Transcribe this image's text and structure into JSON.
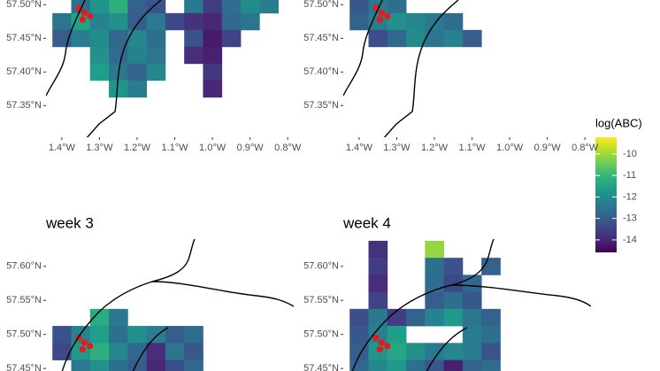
{
  "chart_data": [
    {
      "type": "heatmap",
      "xlim": [
        -1.442,
        -0.784
      ],
      "ylim": [
        57.303,
        57.507
      ],
      "xticks": [
        {
          "value": -1.4,
          "label": "1.4°W"
        },
        {
          "value": -1.3,
          "label": "1.3°W"
        },
        {
          "value": -1.2,
          "label": "1.2°W"
        },
        {
          "value": -1.1,
          "label": "1.1°W"
        },
        {
          "value": -1.0,
          "label": "1.0°W"
        },
        {
          "value": -0.9,
          "label": "0.9°W"
        },
        {
          "value": -0.8,
          "label": "0.8°W"
        }
      ],
      "yticks": [
        {
          "value": 57.35,
          "label": "57.35°N"
        },
        {
          "value": 57.4,
          "label": "57.40°N"
        },
        {
          "value": 57.45,
          "label": "57.45°N"
        },
        {
          "value": 57.5,
          "label": "57.50°N"
        }
      ],
      "cells": [
        {
          "lat": 57.5,
          "lon": [
            -1.35,
            -1.3,
            -1.25,
            -1.2,
            -1.15,
            -1.05,
            -1.0,
            -0.95,
            -0.9,
            -0.85
          ],
          "values": [
            -12.6,
            -11.8,
            -11.2,
            -12.9,
            -13.2,
            -12.4,
            -13.6,
            -12.7,
            -12.0,
            -12.3
          ]
        },
        {
          "lat": 57.475,
          "lon": [
            -1.4,
            -1.35,
            -1.3,
            -1.25,
            -1.2,
            -1.15,
            -1.1,
            -1.05,
            -1.0,
            -0.95,
            -0.9
          ],
          "values": [
            -12.5,
            -11.5,
            -12.2,
            -11.9,
            -13.0,
            -12.4,
            -13.4,
            -13.8,
            -14.0,
            -12.8,
            -12.5
          ]
        },
        {
          "lat": 57.45,
          "lon": [
            -1.4,
            -1.35,
            -1.3,
            -1.25,
            -1.2,
            -1.15,
            -1.05,
            -1.0,
            -0.95
          ],
          "values": [
            -13.0,
            -12.3,
            -12.0,
            -12.8,
            -12.1,
            -12.6,
            -13.2,
            -14.2,
            -13.5
          ]
        },
        {
          "lat": 57.425,
          "lon": [
            -1.3,
            -1.25,
            -1.2,
            -1.15,
            -1.05,
            -1.0
          ],
          "values": [
            -11.9,
            -12.7,
            -12.2,
            -12.5,
            -13.9,
            -14.1
          ]
        },
        {
          "lat": 57.4,
          "lon": [
            -1.3,
            -1.25,
            -1.2,
            -1.15,
            -1.0
          ],
          "values": [
            -11.6,
            -12.4,
            -12.9,
            -12.1,
            -13.7
          ]
        },
        {
          "lat": 57.375,
          "lon": [
            -1.25,
            -1.2,
            -1.0
          ],
          "values": [
            -11.8,
            -12.3,
            -14.0
          ]
        }
      ],
      "sites": {
        "lon": [
          -1.355,
          -1.34,
          -1.325,
          -1.345
        ],
        "lat": [
          57.495,
          57.488,
          57.483,
          57.478
        ],
        "color": "#e41a1c"
      }
    },
    {
      "type": "heatmap",
      "xlim": [
        -1.442,
        -0.784
      ],
      "ylim": [
        57.303,
        57.507
      ],
      "xticks": [
        {
          "value": -1.4,
          "label": "1.4°W"
        },
        {
          "value": -1.3,
          "label": "1.3°W"
        },
        {
          "value": -1.2,
          "label": "1.2°W"
        },
        {
          "value": -1.1,
          "label": "1.1°W"
        },
        {
          "value": -1.0,
          "label": "1.0°W"
        },
        {
          "value": -0.9,
          "label": "0.9°W"
        },
        {
          "value": -0.8,
          "label": "0.8°W"
        }
      ],
      "yticks": [
        {
          "value": 57.35,
          "label": "57.35°N"
        },
        {
          "value": 57.4,
          "label": "57.40°N"
        },
        {
          "value": 57.45,
          "label": "57.45°N"
        },
        {
          "value": 57.5,
          "label": "57.50°N"
        }
      ],
      "cells": [
        {
          "lat": 57.5,
          "lon": [
            -1.4,
            -1.35,
            -1.3
          ],
          "values": [
            -13.1,
            -12.4,
            -12.6
          ]
        },
        {
          "lat": 57.475,
          "lon": [
            -1.4,
            -1.35,
            -1.3,
            -1.25,
            -1.2,
            -1.15
          ],
          "values": [
            -12.9,
            -12.3,
            -11.9,
            -12.1,
            -12.4,
            -12.7
          ]
        },
        {
          "lat": 57.45,
          "lon": [
            -1.35,
            -1.3,
            -1.25,
            -1.2,
            -1.15,
            -1.1
          ],
          "values": [
            -13.3,
            -12.8,
            -12.0,
            -12.5,
            -12.2,
            -13.0
          ]
        }
      ],
      "sites": {
        "lon": [
          -1.355,
          -1.34,
          -1.325,
          -1.345
        ],
        "lat": [
          57.495,
          57.488,
          57.483,
          57.478
        ],
        "color": "#e41a1c"
      }
    },
    {
      "type": "heatmap",
      "title": "week 3",
      "xlim": [
        -1.442,
        -0.784
      ],
      "ylim": [
        57.445,
        57.64
      ],
      "yticks": [
        {
          "value": 57.45,
          "label": "57.45°N"
        },
        {
          "value": 57.5,
          "label": "57.50°N"
        },
        {
          "value": 57.55,
          "label": "57.55°N"
        },
        {
          "value": 57.6,
          "label": "57.60°N"
        }
      ],
      "cells": [
        {
          "lat": 57.525,
          "lon": [
            -1.3,
            -1.25
          ],
          "values": [
            -11.3,
            -12.4
          ]
        },
        {
          "lat": 57.5,
          "lon": [
            -1.4,
            -1.35,
            -1.3,
            -1.25,
            -1.2,
            -1.15,
            -1.1,
            -1.05
          ],
          "values": [
            -13.2,
            -12.2,
            -11.6,
            -12.6,
            -11.9,
            -12.3,
            -13.0,
            -12.7
          ]
        },
        {
          "lat": 57.475,
          "lon": [
            -1.4,
            -1.35,
            -1.3,
            -1.25,
            -1.2,
            -1.15,
            -1.1,
            -1.05
          ],
          "values": [
            -13.4,
            -11.7,
            -11.2,
            -12.1,
            -12.8,
            -13.9,
            -12.5,
            -13.1
          ]
        },
        {
          "lat": 57.45,
          "lon": [
            -1.35,
            -1.3,
            -1.25,
            -1.2,
            -1.15,
            -1.1,
            -1.05
          ],
          "values": [
            -12.4,
            -11.9,
            -12.6,
            -13.0,
            -14.0,
            -13.3,
            -12.8
          ]
        }
      ],
      "sites": {
        "lon": [
          -1.355,
          -1.34,
          -1.325,
          -1.345
        ],
        "lat": [
          57.495,
          57.488,
          57.483,
          57.478
        ],
        "color": "#e41a1c"
      }
    },
    {
      "type": "heatmap",
      "title": "week 4",
      "xlim": [
        -1.442,
        -0.784
      ],
      "ylim": [
        57.445,
        57.64
      ],
      "yticks": [
        {
          "value": 57.45,
          "label": "57.45°N"
        },
        {
          "value": 57.5,
          "label": "57.50°N"
        },
        {
          "value": 57.55,
          "label": "57.55°N"
        },
        {
          "value": 57.6,
          "label": "57.60°N"
        }
      ],
      "cells": [
        {
          "lat": 57.625,
          "lon": [
            -1.35,
            -1.2
          ],
          "values": [
            -13.8,
            -10.1
          ]
        },
        {
          "lat": 57.6,
          "lon": [
            -1.35,
            -1.2,
            -1.15,
            -1.05
          ],
          "values": [
            -13.6,
            -12.6,
            -13.2,
            -12.9
          ]
        },
        {
          "lat": 57.575,
          "lon": [
            -1.35,
            -1.2,
            -1.15,
            -1.1
          ],
          "values": [
            -13.9,
            -12.7,
            -13.4,
            -12.8
          ]
        },
        {
          "lat": 57.55,
          "lon": [
            -1.35,
            -1.2,
            -1.15,
            -1.1
          ],
          "values": [
            -13.5,
            -13.0,
            -12.6,
            -13.1
          ]
        },
        {
          "lat": 57.525,
          "lon": [
            -1.4,
            -1.35,
            -1.3,
            -1.25,
            -1.2,
            -1.15,
            -1.1,
            -1.05
          ],
          "values": [
            -13.3,
            -12.4,
            -13.6,
            -12.9,
            -12.2,
            -11.7,
            -12.5,
            -12.9
          ]
        },
        {
          "lat": 57.5,
          "lon": [
            -1.4,
            -1.35,
            -1.3,
            -1.1,
            -1.05
          ],
          "values": [
            -13.1,
            -12.2,
            -11.6,
            -12.3,
            -12.6
          ]
        },
        {
          "lat": 57.475,
          "lon": [
            -1.4,
            -1.35,
            -1.3,
            -1.25,
            -1.2,
            -1.15,
            -1.1,
            -1.05
          ],
          "values": [
            -13.0,
            -11.8,
            -11.4,
            -11.9,
            -12.4,
            -12.1,
            -12.3,
            -13.2
          ]
        },
        {
          "lat": 57.45,
          "lon": [
            -1.4,
            -1.35,
            -1.3,
            -1.25,
            -1.2,
            -1.15,
            -1.1,
            -1.05
          ],
          "values": [
            -12.8,
            -12.1,
            -11.7,
            -12.6,
            -13.1,
            -14.1,
            -12.9,
            -12.7
          ]
        }
      ],
      "sites": {
        "lon": [
          -1.355,
          -1.34,
          -1.325,
          -1.345
        ],
        "lat": [
          57.495,
          57.488,
          57.483,
          57.478
        ],
        "color": "#e41a1c"
      }
    }
  ],
  "colorbar": {
    "title": "log(ABC)",
    "lim": [
      -14.58,
      -9.22
    ],
    "ticks": [
      -10,
      -11,
      -12,
      -13,
      -14
    ],
    "colors": [
      "#440154",
      "#482878",
      "#3e4989",
      "#31688e",
      "#26828e",
      "#1f9e89",
      "#35b779",
      "#6ece58",
      "#b5de2b",
      "#fde725"
    ]
  }
}
